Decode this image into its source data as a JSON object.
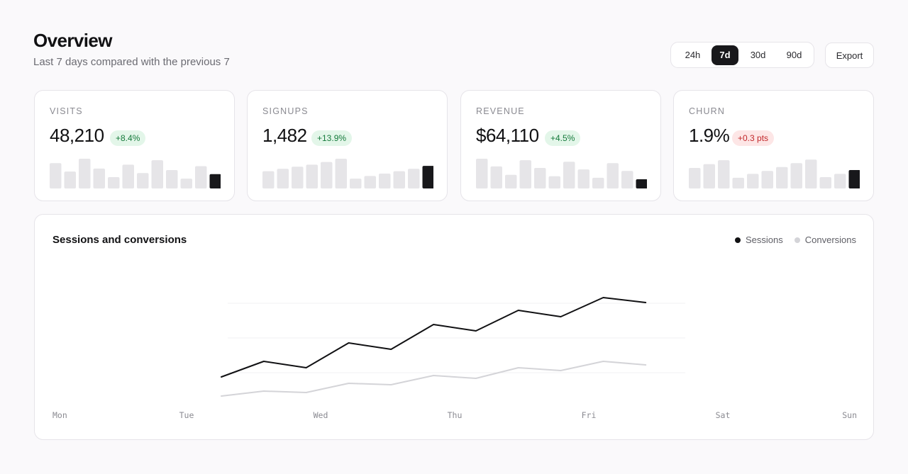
{
  "header": {
    "title": "Overview",
    "subtitle": "Last 7 days compared with the previous 7"
  },
  "range": {
    "options": [
      "24h",
      "7d",
      "30d",
      "90d"
    ],
    "selected": "7d"
  },
  "export_label": "Export",
  "kpis": [
    {
      "label": "VISITS",
      "value": "48,210",
      "delta": "+8.4%",
      "trend": "up",
      "bars": [
        0.85,
        0.57,
        1.0,
        0.67,
        0.38,
        0.8,
        0.52,
        0.95,
        0.62,
        0.33,
        0.75,
        0.48
      ]
    },
    {
      "label": "SIGNUPS",
      "value": "1,482",
      "delta": "+13.9%",
      "trend": "up",
      "bars": [
        0.58,
        0.66,
        0.73,
        0.8,
        0.89,
        1.0,
        0.33,
        0.42,
        0.5,
        0.58,
        0.66,
        0.76
      ]
    },
    {
      "label": "REVENUE",
      "value": "$64,110",
      "delta": "+4.5%",
      "trend": "up",
      "bars": [
        1.0,
        0.74,
        0.46,
        0.95,
        0.69,
        0.41,
        0.9,
        0.64,
        0.36,
        0.85,
        0.59,
        0.31
      ]
    },
    {
      "label": "CHURN",
      "value": "1.9%",
      "delta": "+0.3 pts",
      "trend": "down",
      "bars": [
        0.69,
        0.82,
        0.95,
        0.36,
        0.49,
        0.59,
        0.72,
        0.85,
        0.97,
        0.38,
        0.49,
        0.62
      ]
    }
  ],
  "chart": {
    "title": "Sessions and conversions",
    "legend": [
      {
        "name": "Sessions",
        "color": "#111113"
      },
      {
        "name": "Conversions",
        "color": "#d4d4d8"
      }
    ]
  },
  "chart_data": {
    "type": "line",
    "x_labels": [
      "Mon",
      "Tue",
      "Wed",
      "Thu",
      "Fri",
      "Sat",
      "Sun"
    ],
    "xlim": [
      0,
      11
    ],
    "ylim": [
      0,
      155
    ],
    "grid_y": [
      42,
      91,
      140
    ],
    "grid": true,
    "legend_position": "top-right",
    "series": [
      {
        "name": "Sessions",
        "color": "#111113",
        "values": [
          36,
          58,
          49,
          84,
          75,
          110,
          101,
          130,
          121,
          148,
          141
        ]
      },
      {
        "name": "Conversions",
        "color": "#d4d4d8",
        "values": [
          9,
          16,
          14,
          27,
          25,
          38,
          34,
          49,
          45,
          58,
          53
        ]
      }
    ]
  },
  "colors": {
    "accent": "#18181b",
    "bar_muted": "#e6e5e8",
    "bar_last": "#18181b",
    "positive": "#157a3b",
    "negative": "#c2282b"
  }
}
